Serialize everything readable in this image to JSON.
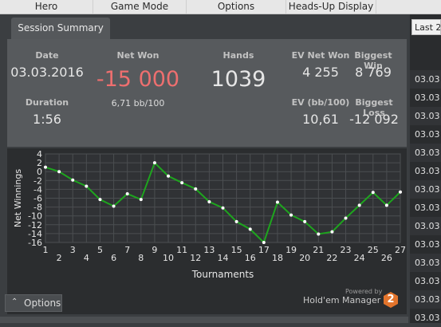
{
  "menu": {
    "items": [
      {
        "label": "Hero"
      },
      {
        "label": "Game Mode"
      },
      {
        "label": "Options"
      },
      {
        "label": "Heads-Up Display"
      }
    ]
  },
  "tabs": {
    "session_summary": "Session Summary"
  },
  "summary": {
    "date_label": "Date",
    "date_value": "03.03.2016",
    "netwon_label": "Net Won",
    "netwon_value": "-15 000",
    "netwon_bb": "6,71 bb/100",
    "hands_label": "Hands",
    "hands_value": "1039",
    "ev_net_label": "EV Net Won",
    "ev_net_value": "4 255",
    "biggest_win_label": "Biggest Win",
    "biggest_win_value": "8 769",
    "duration_label": "Duration",
    "duration_value": "1:56",
    "ev_bb_label": "EV (bb/100)",
    "ev_bb_value": "10,61",
    "biggest_loss_label": "Biggest Loss",
    "biggest_loss_value": "-12 092"
  },
  "chart_data": {
    "type": "line",
    "xlabel": "Tournaments",
    "ylabel": "Net Winnings",
    "ylim": [
      -16,
      4
    ],
    "yticks": [
      4,
      2,
      0,
      -2,
      -4,
      -6,
      -8,
      -10,
      -12,
      -14,
      -16
    ],
    "x": [
      1,
      2,
      3,
      4,
      5,
      6,
      7,
      8,
      9,
      10,
      11,
      12,
      13,
      14,
      15,
      16,
      17,
      18,
      19,
      20,
      21,
      22,
      23,
      24,
      25,
      26,
      27
    ],
    "series": [
      {
        "values": [
          1,
          0,
          -1.9,
          -3.3,
          -6.3,
          -7.8,
          -5,
          -6.3,
          2,
          -1,
          -2.5,
          -3.9,
          -6.8,
          -8.2,
          -11.3,
          -13,
          -16,
          -6.9,
          -9.8,
          -11.3,
          -14.1,
          -13.6,
          -10.5,
          -7.6,
          -4.7,
          -7.6,
          -4.6
        ]
      }
    ],
    "grid": true,
    "color": "#1ea51e"
  },
  "bottom": {
    "options_label": "Options",
    "powered_by": "Powered by",
    "brand": "Hold'em Manager",
    "brand_num": "2"
  },
  "right": {
    "dropdown": "Last 2",
    "rows": [
      "03.03",
      "03.03",
      "03.03",
      "03.03",
      "03.03",
      "03.03",
      "03.03",
      "03.03",
      "03.03",
      "03.03",
      "03.03",
      "03.03",
      "03.03",
      "03.03"
    ]
  }
}
